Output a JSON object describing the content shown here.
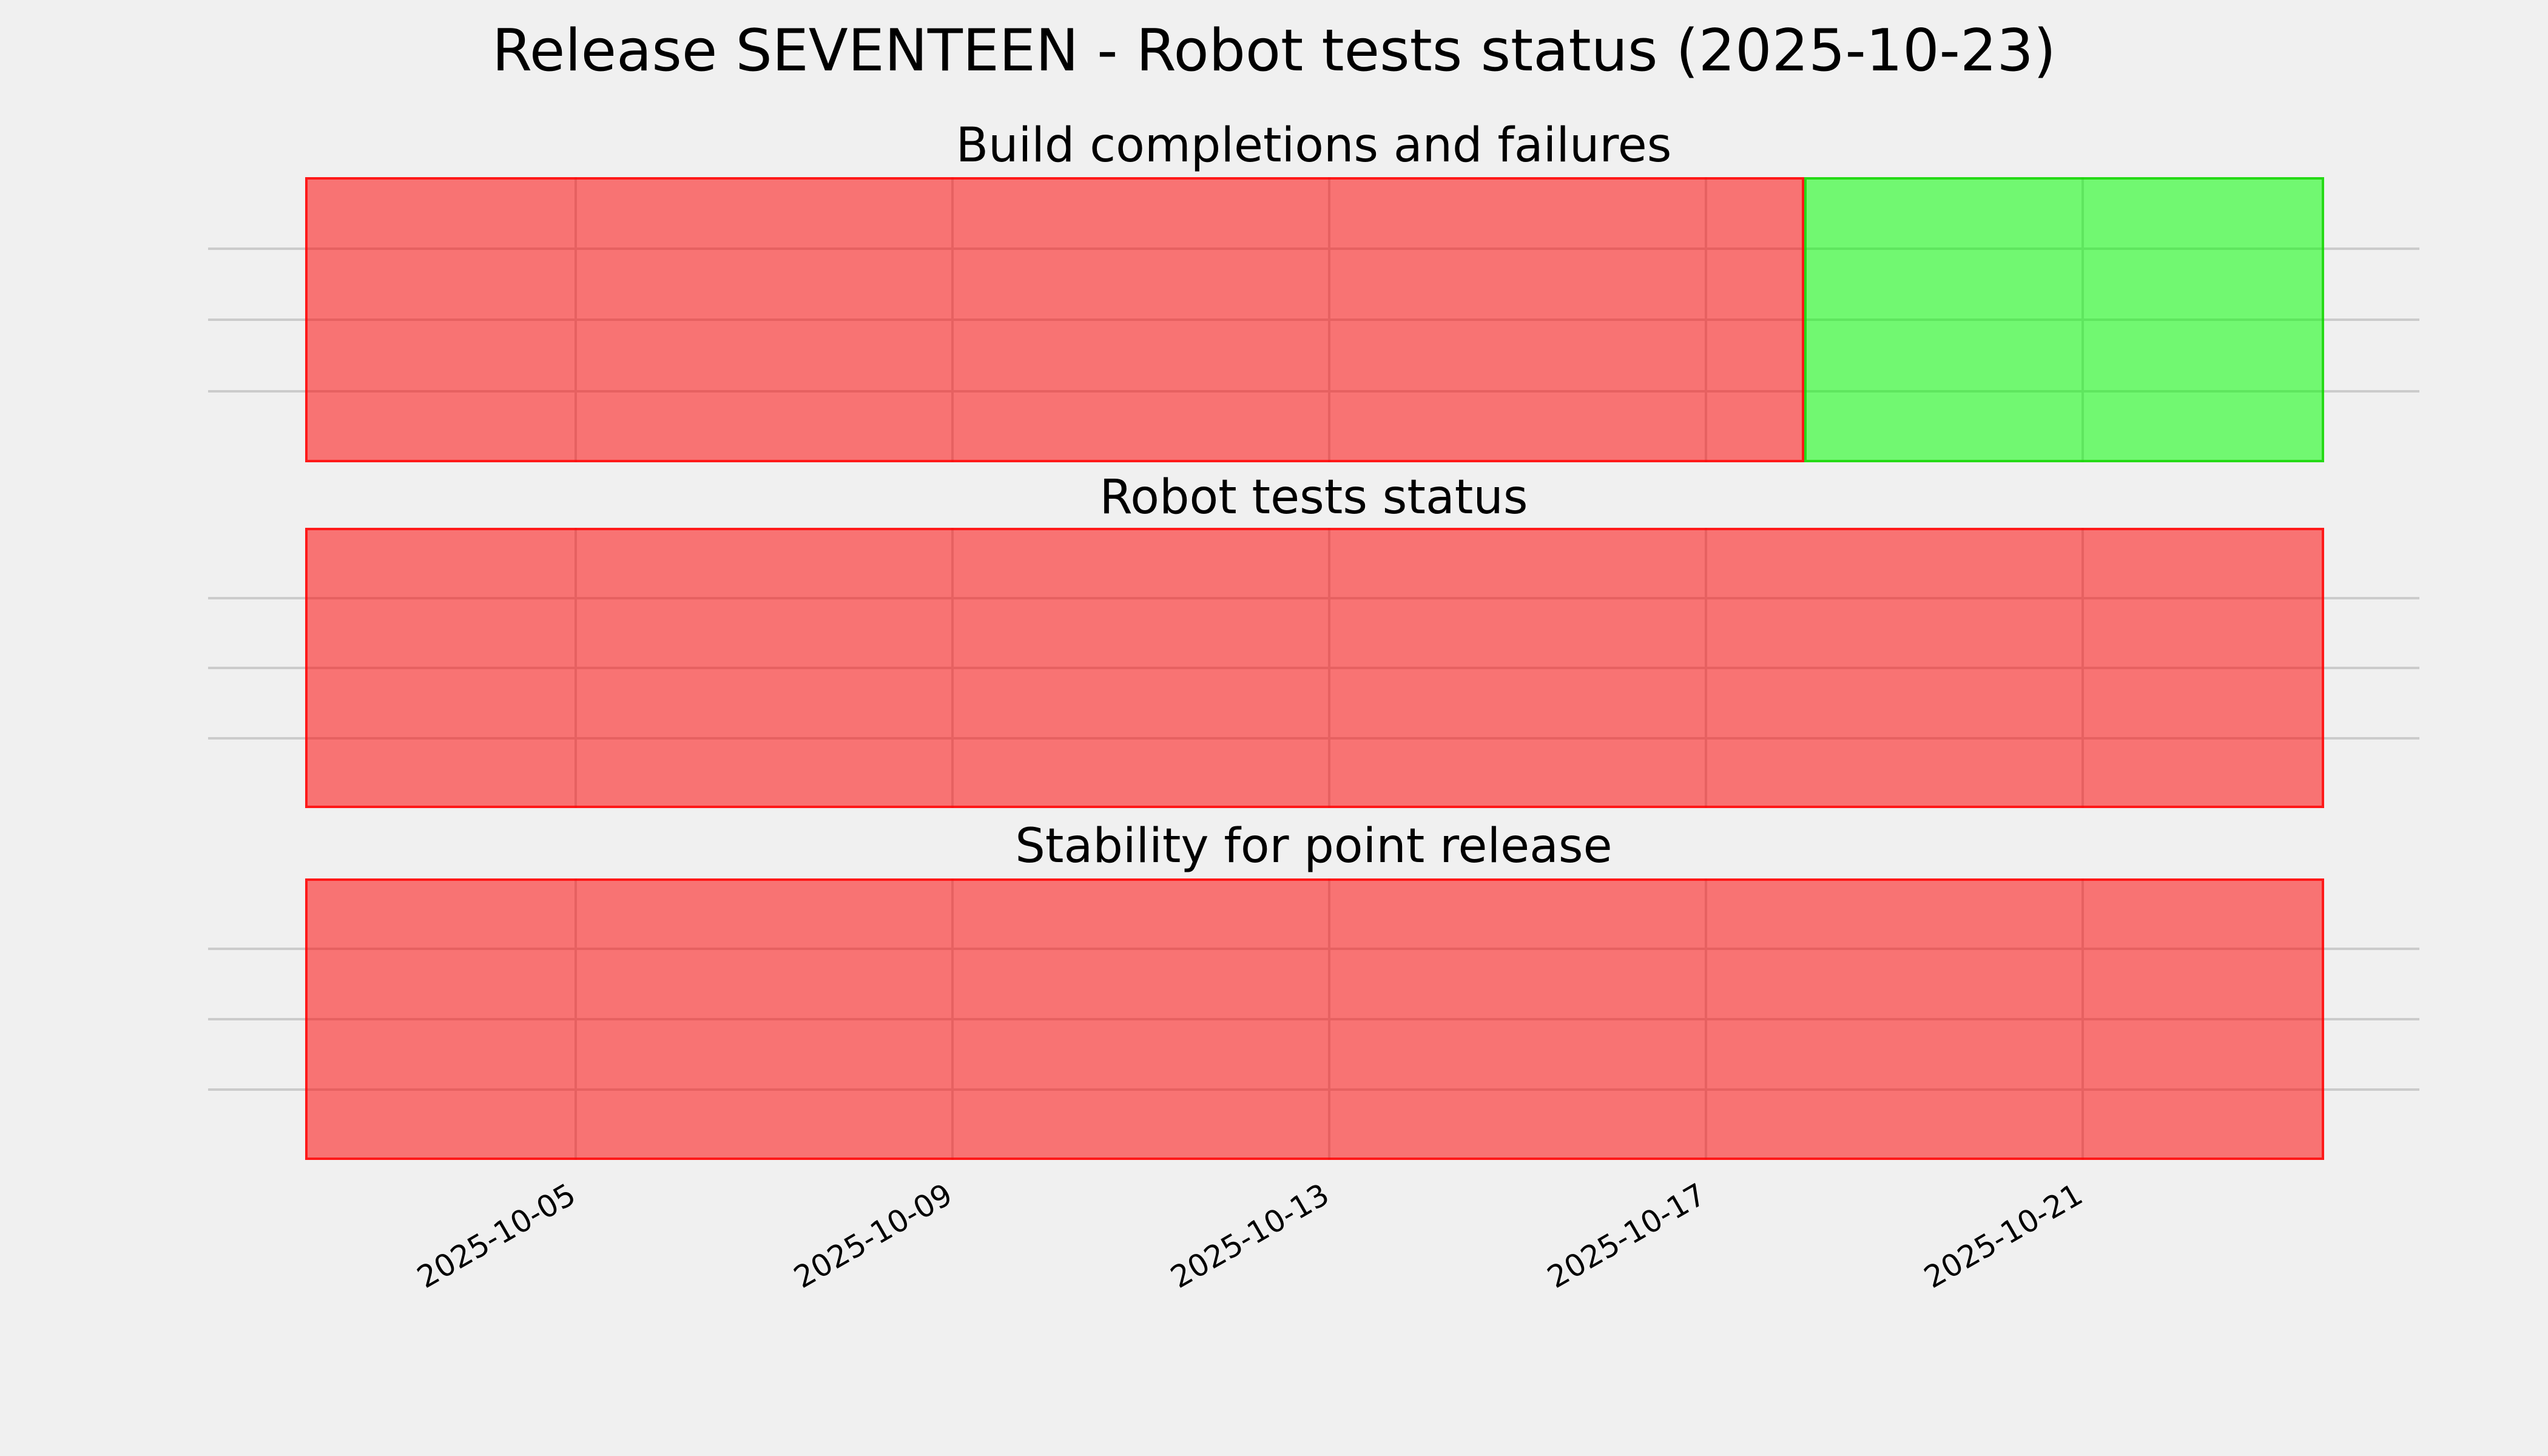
{
  "figure": {
    "title": "Release SEVENTEEN - Robot tests status (2025-10-23)"
  },
  "chart_data": {
    "type": "heatmap",
    "title": "Release SEVENTEEN - Robot tests status (2025-10-23)",
    "x_axis_range": {
      "min": "2025-10-01T02:20",
      "max": "2025-10-24T13:50"
    },
    "x_ticks": [
      {
        "date": "2025-10-05T00:00",
        "label": "2025-10-05"
      },
      {
        "date": "2025-10-09T00:00",
        "label": "2025-10-09"
      },
      {
        "date": "2025-10-13T00:00",
        "label": "2025-10-13"
      },
      {
        "date": "2025-10-17T00:00",
        "label": "2025-10-17"
      },
      {
        "date": "2025-10-21T00:00",
        "label": "2025-10-21"
      }
    ],
    "x_tick_rotation_deg": 30,
    "grid": true,
    "legend": false,
    "panels": [
      {
        "title": "Build completions and failures",
        "rows": 4,
        "segments": [
          {
            "status": "fail",
            "start": "2025-10-02T03:00",
            "end": "2025-10-18T01:00"
          },
          {
            "status": "pass",
            "start": "2025-10-18T01:00",
            "end": "2025-10-23T13:30"
          }
        ]
      },
      {
        "title": "Robot tests status",
        "rows": 4,
        "segments": [
          {
            "status": "fail",
            "start": "2025-10-02T03:00",
            "end": "2025-10-23T13:30"
          }
        ]
      },
      {
        "title": "Stability for point release",
        "rows": 4,
        "segments": [
          {
            "status": "fail",
            "start": "2025-10-02T03:00",
            "end": "2025-10-23T13:30"
          }
        ]
      }
    ],
    "colors": {
      "background": "#f0f0f0",
      "gridline": "#cbcbcb",
      "text": "#000000",
      "fail_fill": "rgba(255,0,0,0.52)",
      "fail_edge": "rgba(255,0,0,0.78)",
      "pass_fill": "rgba(0,255,0,0.53)",
      "pass_edge": "rgba(20,210,0,0.8)"
    }
  }
}
